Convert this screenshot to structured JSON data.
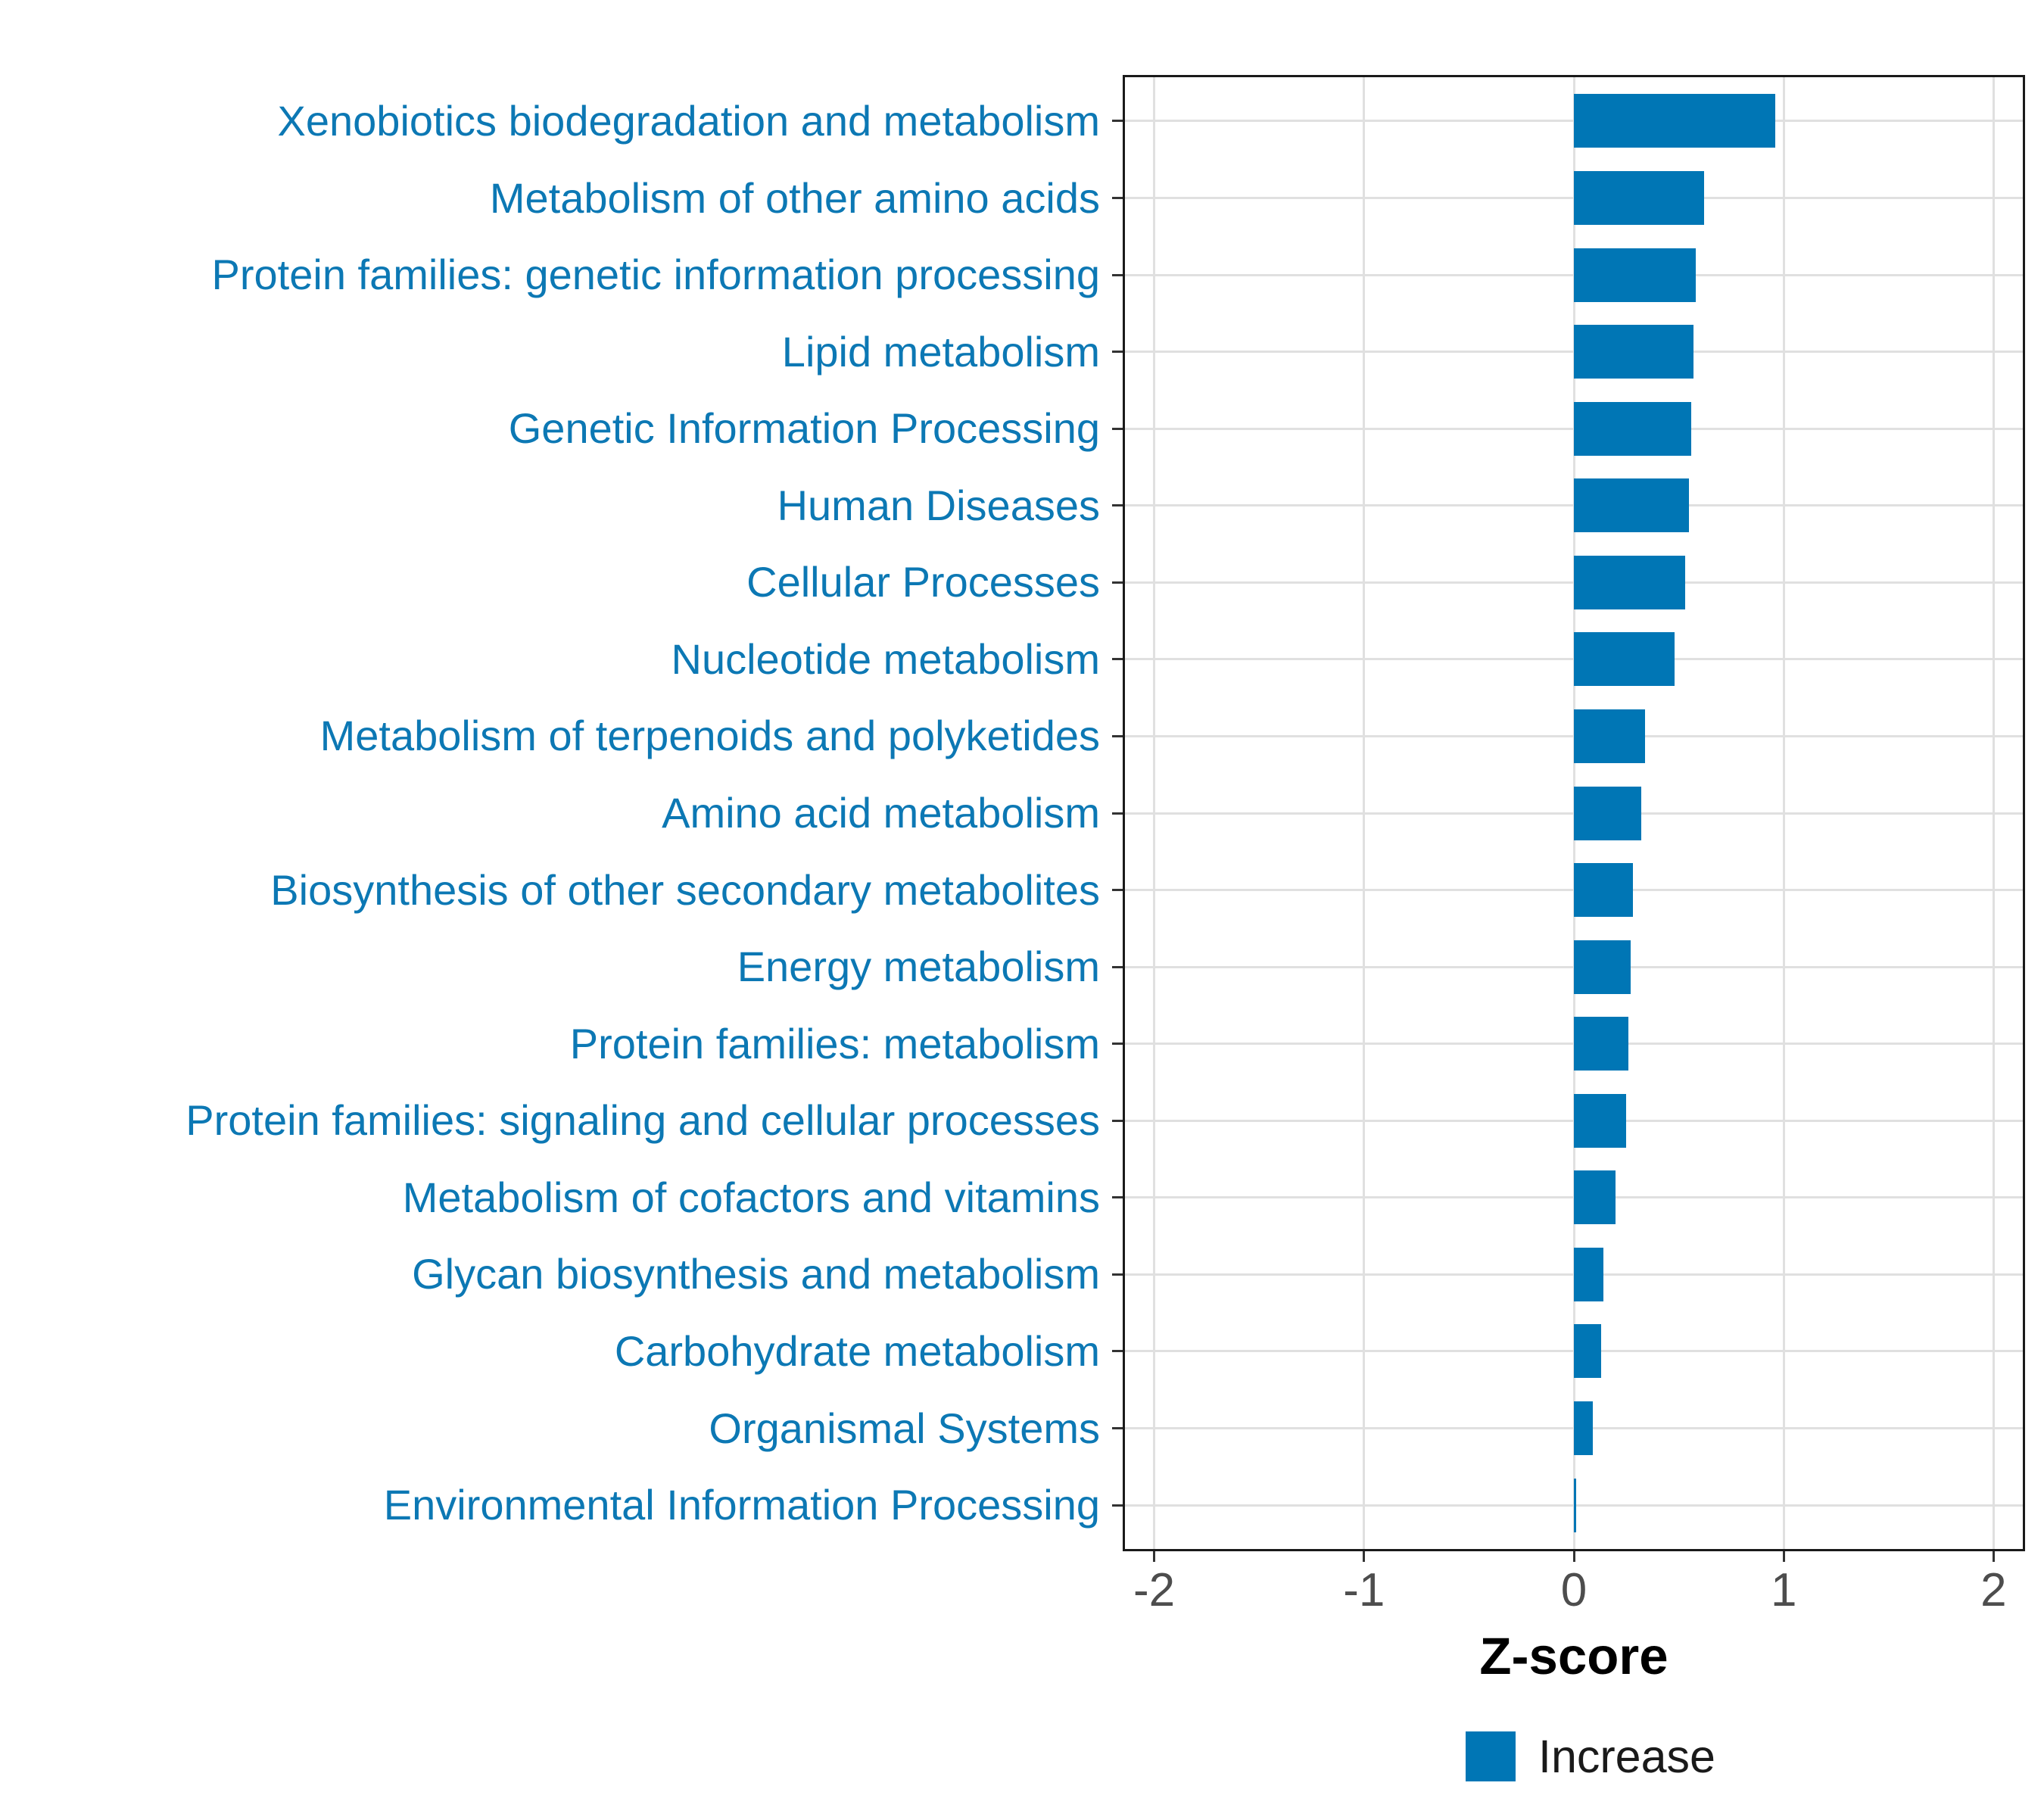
{
  "chart_data": {
    "type": "bar",
    "orientation": "horizontal",
    "title": "",
    "xlabel": "Z-score",
    "ylabel": "",
    "categories": [
      "Xenobiotics biodegradation and metabolism",
      "Metabolism of other amino acids",
      "Protein families: genetic information processing",
      "Lipid metabolism",
      "Genetic Information Processing",
      "Human Diseases",
      "Cellular Processes",
      "Nucleotide metabolism",
      "Metabolism of terpenoids and polyketides",
      "Amino acid metabolism",
      "Biosynthesis of other secondary metabolites",
      "Energy metabolism",
      "Protein families: metabolism",
      "Protein families: signaling and cellular processes",
      "Metabolism of cofactors and vitamins",
      "Glycan biosynthesis and metabolism",
      "Carbohydrate metabolism",
      "Organismal Systems",
      "Environmental Information Processing"
    ],
    "values": [
      0.96,
      0.62,
      0.58,
      0.57,
      0.56,
      0.55,
      0.53,
      0.48,
      0.34,
      0.32,
      0.28,
      0.27,
      0.26,
      0.25,
      0.2,
      0.14,
      0.13,
      0.09,
      0.01
    ],
    "x_ticks": [
      "-2",
      "-1",
      "0",
      "1",
      "2"
    ],
    "x_tick_values": [
      -2,
      -1,
      0,
      1,
      2
    ],
    "xlim": [
      -2.15,
      2.15
    ],
    "grid": true,
    "legend_position": "bottom",
    "series_name": "Increase"
  },
  "colors": {
    "bar_fill": "#0076B5",
    "category_label": "#0C78B4",
    "gridline": "#E0E0E0",
    "axis_text": "#4D4D4D",
    "panel_border": "#1A1A1A"
  },
  "axis": {
    "x_title": "Z-score"
  },
  "legend": {
    "items": [
      {
        "label": "Increase",
        "color": "#0076B5"
      }
    ]
  }
}
